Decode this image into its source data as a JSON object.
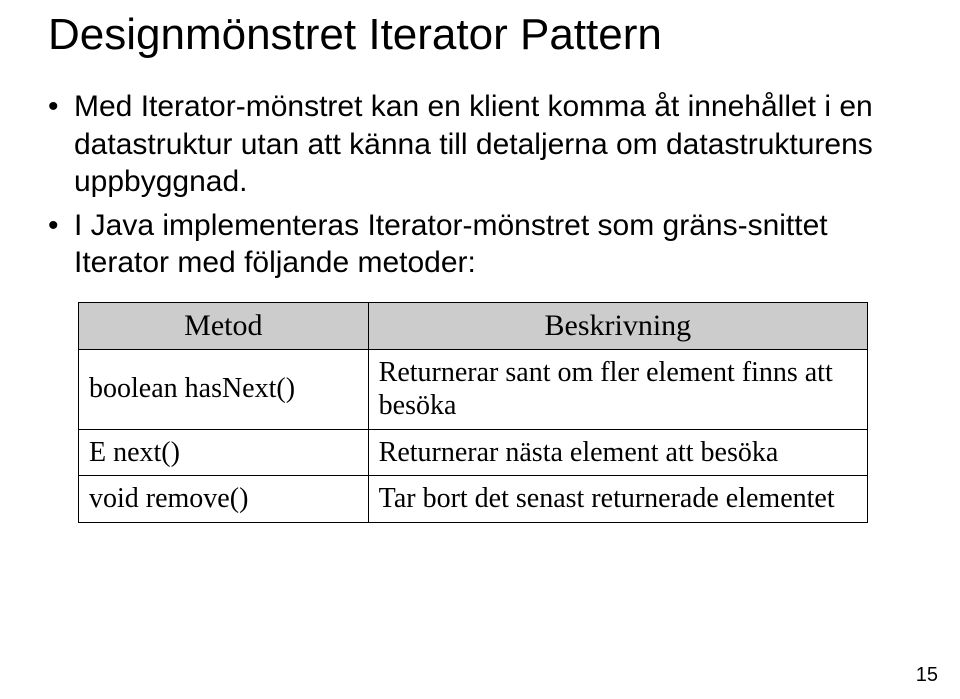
{
  "title": "Designmönstret Iterator Pattern",
  "bullets": [
    "Med Iterator-mönstret kan en klient komma åt innehållet i en datastruktur utan att känna till detaljerna om datastrukturens uppbyggnad.",
    "I Java implementeras Iterator-mönstret som gräns-snittet Iterator med följande metoder:"
  ],
  "table": {
    "headers": {
      "method": "Metod",
      "desc": "Beskrivning"
    },
    "rows": [
      {
        "method": "boolean hasNext()",
        "desc": "Returnerar sant om fler element finns att besöka"
      },
      {
        "method": "E next()",
        "desc": "Returnerar nästa element att besöka"
      },
      {
        "method": "void remove()",
        "desc": "Tar bort det senast returnerade elementet"
      }
    ]
  },
  "page_number": "15"
}
